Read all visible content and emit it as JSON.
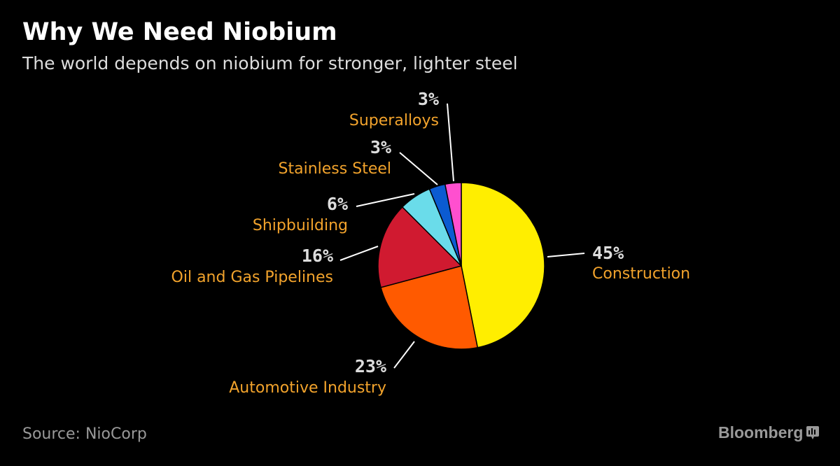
{
  "header": {
    "title": "Why We Need Niobium",
    "subtitle": "The world depends on niobium for stronger, lighter steel"
  },
  "footer": {
    "source": "Source: NioCorp",
    "brand": "Bloomberg"
  },
  "colors": {
    "background": "#000000",
    "label_text": "#f2a32c",
    "value_text": "#dddddd",
    "leader_line": "#ffffff"
  },
  "chart_data": {
    "type": "pie",
    "start_angle_deg": 0,
    "direction": "clockwise",
    "slices": [
      {
        "label": "Construction",
        "display": "45%",
        "value": 45,
        "color": "#ffee00"
      },
      {
        "label": "Automotive Industry",
        "display": "23%",
        "value": 23,
        "color": "#ff5a00"
      },
      {
        "label": "Oil and Gas Pipelines",
        "display": "16%",
        "value": 16,
        "color": "#d01a30"
      },
      {
        "label": "Shipbuilding",
        "display": "6%",
        "value": 6,
        "color": "#6adcea"
      },
      {
        "label": "Stainless Steel",
        "display": "3%",
        "value": 3,
        "color": "#0b5bd1"
      },
      {
        "label": "Superalloys",
        "display": "3%",
        "value": 3,
        "color": "#ff4fcf"
      }
    ]
  }
}
